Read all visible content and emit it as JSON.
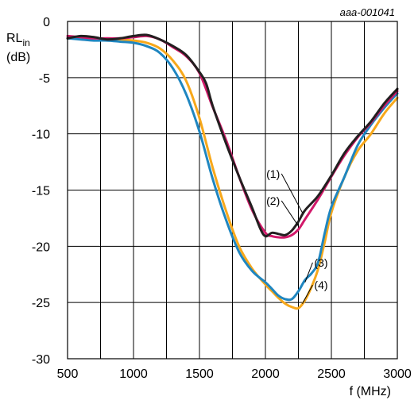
{
  "reference_id": "aaa-001041",
  "chart_data": {
    "type": "line",
    "ylabel_main": "RL",
    "ylabel_sub": "in",
    "ylabel_unit": "(dB)",
    "xlabel": "f (MHz)",
    "xlim": [
      500,
      3000
    ],
    "ylim": [
      -30,
      0
    ],
    "x_ticks": [
      500,
      1000,
      1500,
      2000,
      2500,
      3000
    ],
    "y_ticks": [
      0,
      -5,
      -10,
      -15,
      -20,
      -25,
      -30
    ],
    "x_tick_labels": [
      "500",
      "1000",
      "1500",
      "2000",
      "2500",
      "3000"
    ],
    "y_tick_labels": [
      "0",
      "-5",
      "-10",
      "-15",
      "-20",
      "-25",
      "-30"
    ],
    "x_grid_step": 250,
    "y_grid_step": 5,
    "grid": true,
    "series": [
      {
        "id": "(1)",
        "color": "#231f20",
        "x": [
          500,
          600,
          700,
          800,
          900,
          1000,
          1100,
          1200,
          1300,
          1400,
          1500,
          1550,
          1600,
          1700,
          1800,
          1900,
          1960,
          2000,
          2050,
          2100,
          2150,
          2200,
          2250,
          2300,
          2400,
          2500,
          2600,
          2700,
          2800,
          2900,
          3000
        ],
        "y": [
          -1.5,
          -1.3,
          -1.4,
          -1.6,
          -1.5,
          -1.3,
          -1.2,
          -1.6,
          -2.2,
          -3.0,
          -4.5,
          -5.5,
          -7.5,
          -10.8,
          -13.8,
          -16.6,
          -18.4,
          -19.1,
          -18.8,
          -18.9,
          -19.0,
          -18.6,
          -17.8,
          -16.8,
          -15.5,
          -13.7,
          -11.7,
          -10.2,
          -8.9,
          -7.3,
          -6.0
        ]
      },
      {
        "id": "(2)",
        "color": "#d2196a",
        "x": [
          500,
          600,
          700,
          800,
          900,
          1000,
          1100,
          1200,
          1300,
          1400,
          1500,
          1600,
          1700,
          1800,
          1900,
          2000,
          2050,
          2100,
          2150,
          2200,
          2250,
          2300,
          2400,
          2500,
          2600,
          2700,
          2800,
          2900,
          3000
        ],
        "y": [
          -1.3,
          -1.4,
          -1.5,
          -1.5,
          -1.5,
          -1.4,
          -1.3,
          -1.6,
          -2.3,
          -3.1,
          -4.6,
          -7.6,
          -10.5,
          -13.8,
          -16.8,
          -18.8,
          -19.1,
          -19.2,
          -19.2,
          -19.0,
          -18.5,
          -17.6,
          -15.8,
          -13.8,
          -11.9,
          -10.3,
          -9.0,
          -7.5,
          -6.2
        ]
      },
      {
        "id": "(3)",
        "color": "#1f86c0",
        "x": [
          500,
          600,
          700,
          800,
          900,
          1000,
          1100,
          1200,
          1300,
          1400,
          1500,
          1600,
          1700,
          1800,
          1900,
          2000,
          2050,
          2100,
          2150,
          2200,
          2250,
          2300,
          2350,
          2400,
          2450,
          2500,
          2600,
          2700,
          2800,
          2900,
          3000
        ],
        "y": [
          -1.5,
          -1.6,
          -1.7,
          -1.7,
          -1.8,
          -1.9,
          -2.2,
          -2.8,
          -4.2,
          -6.5,
          -9.8,
          -14.0,
          -17.6,
          -20.5,
          -22.2,
          -23.2,
          -23.8,
          -24.4,
          -24.7,
          -24.7,
          -24.0,
          -23.0,
          -22.4,
          -21.4,
          -18.8,
          -16.5,
          -13.8,
          -11.0,
          -9.2,
          -7.7,
          -6.4
        ]
      },
      {
        "id": "(4)",
        "color": "#f7a81b",
        "x": [
          500,
          600,
          700,
          800,
          900,
          1000,
          1100,
          1200,
          1300,
          1400,
          1500,
          1600,
          1700,
          1800,
          1900,
          2000,
          2050,
          2100,
          2150,
          2200,
          2250,
          2300,
          2350,
          2400,
          2450,
          2500,
          2600,
          2700,
          2800,
          2900,
          3000
        ],
        "y": [
          -1.5,
          -1.5,
          -1.5,
          -1.6,
          -1.6,
          -1.7,
          -1.9,
          -2.4,
          -3.5,
          -5.3,
          -8.6,
          -13.0,
          -16.8,
          -20.0,
          -22.0,
          -23.4,
          -24.0,
          -24.6,
          -25.1,
          -25.4,
          -25.5,
          -24.8,
          -23.6,
          -22.0,
          -19.6,
          -17.0,
          -13.8,
          -11.5,
          -10.0,
          -8.2,
          -6.8
        ]
      }
    ],
    "callouts": [
      {
        "label": "(1)",
        "x": 2110,
        "y": -13.9,
        "target_x": 2280,
        "target_y": -17.0,
        "side": "left"
      },
      {
        "label": "(2)",
        "x": 2110,
        "y": -16.3,
        "target_x": 2250,
        "target_y": -18.2,
        "side": "left"
      },
      {
        "label": "(3)",
        "x": 2370,
        "y": -21.8,
        "target_x": 2300,
        "target_y": -23.2,
        "side": "right"
      },
      {
        "label": "(4)",
        "x": 2370,
        "y": -23.8,
        "target_x": 2280,
        "target_y": -25.1,
        "side": "right"
      }
    ]
  }
}
